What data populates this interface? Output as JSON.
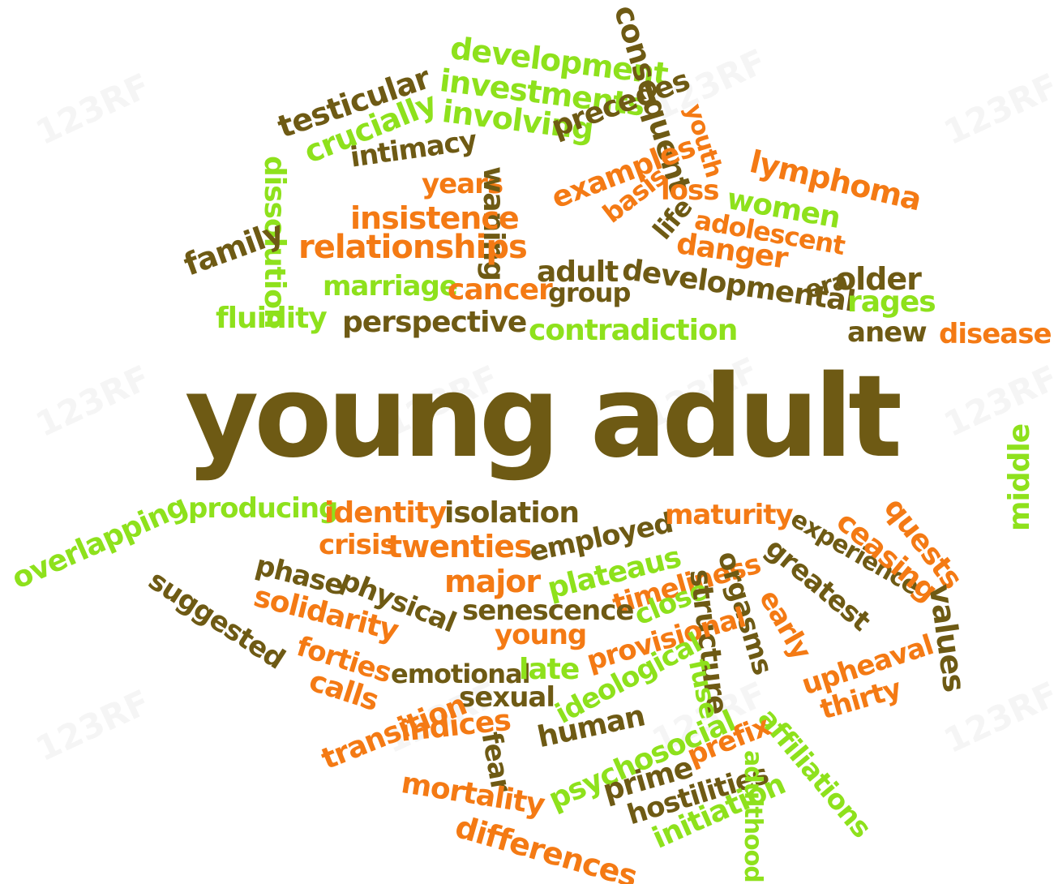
{
  "title": "young adult",
  "colors": {
    "brown": "#6e5a14",
    "orange": "#f47a14",
    "green": "#8ee11c",
    "background": "#ffffff",
    "watermark": "#dcdcdc"
  },
  "watermark": "123RF",
  "words": [
    {
      "text": "development",
      "color": "green"
    },
    {
      "text": "investments",
      "color": "green"
    },
    {
      "text": "involving",
      "color": "green"
    },
    {
      "text": "consequent",
      "color": "brown"
    },
    {
      "text": "testicular",
      "color": "brown"
    },
    {
      "text": "crucially",
      "color": "green"
    },
    {
      "text": "precedes",
      "color": "brown"
    },
    {
      "text": "youth",
      "color": "orange"
    },
    {
      "text": "lymphoma",
      "color": "orange"
    },
    {
      "text": "intimacy",
      "color": "brown"
    },
    {
      "text": "dissolution",
      "color": "green"
    },
    {
      "text": "years",
      "color": "orange"
    },
    {
      "text": "waning",
      "color": "brown"
    },
    {
      "text": "examples",
      "color": "orange"
    },
    {
      "text": "loss",
      "color": "orange"
    },
    {
      "text": "women",
      "color": "green"
    },
    {
      "text": "insistence",
      "color": "orange"
    },
    {
      "text": "basis",
      "color": "orange"
    },
    {
      "text": "adolescent",
      "color": "orange"
    },
    {
      "text": "life",
      "color": "brown"
    },
    {
      "text": "relationships",
      "color": "orange"
    },
    {
      "text": "danger",
      "color": "orange"
    },
    {
      "text": "family",
      "color": "brown"
    },
    {
      "text": "adult",
      "color": "brown"
    },
    {
      "text": "developmental",
      "color": "brown"
    },
    {
      "text": "era",
      "color": "brown"
    },
    {
      "text": "older",
      "color": "brown"
    },
    {
      "text": "marriage",
      "color": "green"
    },
    {
      "text": "cancer",
      "color": "orange"
    },
    {
      "text": "group",
      "color": "brown"
    },
    {
      "text": "rages",
      "color": "green"
    },
    {
      "text": "fluidity",
      "color": "green"
    },
    {
      "text": "perspective",
      "color": "brown"
    },
    {
      "text": "contradiction",
      "color": "green"
    },
    {
      "text": "anew",
      "color": "brown"
    },
    {
      "text": "disease",
      "color": "orange"
    },
    {
      "text": "middle",
      "color": "green"
    },
    {
      "text": "overlapping",
      "color": "green"
    },
    {
      "text": "producing",
      "color": "green"
    },
    {
      "text": "identity",
      "color": "orange"
    },
    {
      "text": "isolation",
      "color": "brown"
    },
    {
      "text": "employed",
      "color": "brown"
    },
    {
      "text": "maturity",
      "color": "orange"
    },
    {
      "text": "experience",
      "color": "brown"
    },
    {
      "text": "ceasing",
      "color": "orange"
    },
    {
      "text": "quests",
      "color": "orange"
    },
    {
      "text": "crisis",
      "color": "orange"
    },
    {
      "text": "twenties",
      "color": "orange"
    },
    {
      "text": "phase",
      "color": "brown"
    },
    {
      "text": "plateaus",
      "color": "green"
    },
    {
      "text": "timeliness",
      "color": "orange"
    },
    {
      "text": "orgasms",
      "color": "brown"
    },
    {
      "text": "greatest",
      "color": "brown"
    },
    {
      "text": "suggested",
      "color": "brown"
    },
    {
      "text": "physical",
      "color": "brown"
    },
    {
      "text": "major",
      "color": "orange"
    },
    {
      "text": "solidarity",
      "color": "orange"
    },
    {
      "text": "senescence",
      "color": "brown"
    },
    {
      "text": "close",
      "color": "green"
    },
    {
      "text": "structure",
      "color": "brown"
    },
    {
      "text": "early",
      "color": "orange"
    },
    {
      "text": "values",
      "color": "brown"
    },
    {
      "text": "young",
      "color": "orange"
    },
    {
      "text": "provisional",
      "color": "orange"
    },
    {
      "text": "forties",
      "color": "orange"
    },
    {
      "text": "emotional",
      "color": "brown"
    },
    {
      "text": "late",
      "color": "green"
    },
    {
      "text": "fuse",
      "color": "green"
    },
    {
      "text": "upheaval",
      "color": "orange"
    },
    {
      "text": "calls",
      "color": "orange"
    },
    {
      "text": "ideological",
      "color": "green"
    },
    {
      "text": "sexual",
      "color": "brown"
    },
    {
      "text": "thirty",
      "color": "orange"
    },
    {
      "text": "transition",
      "color": "orange"
    },
    {
      "text": "indices",
      "color": "orange"
    },
    {
      "text": "fear",
      "color": "brown"
    },
    {
      "text": "human",
      "color": "brown"
    },
    {
      "text": "psychosocial",
      "color": "green"
    },
    {
      "text": "affiliations",
      "color": "green"
    },
    {
      "text": "prefix",
      "color": "orange"
    },
    {
      "text": "mortality",
      "color": "orange"
    },
    {
      "text": "prime",
      "color": "brown"
    },
    {
      "text": "hostilities",
      "color": "brown"
    },
    {
      "text": "adulthood",
      "color": "green"
    },
    {
      "text": "differences",
      "color": "orange"
    },
    {
      "text": "initiation",
      "color": "green"
    }
  ]
}
